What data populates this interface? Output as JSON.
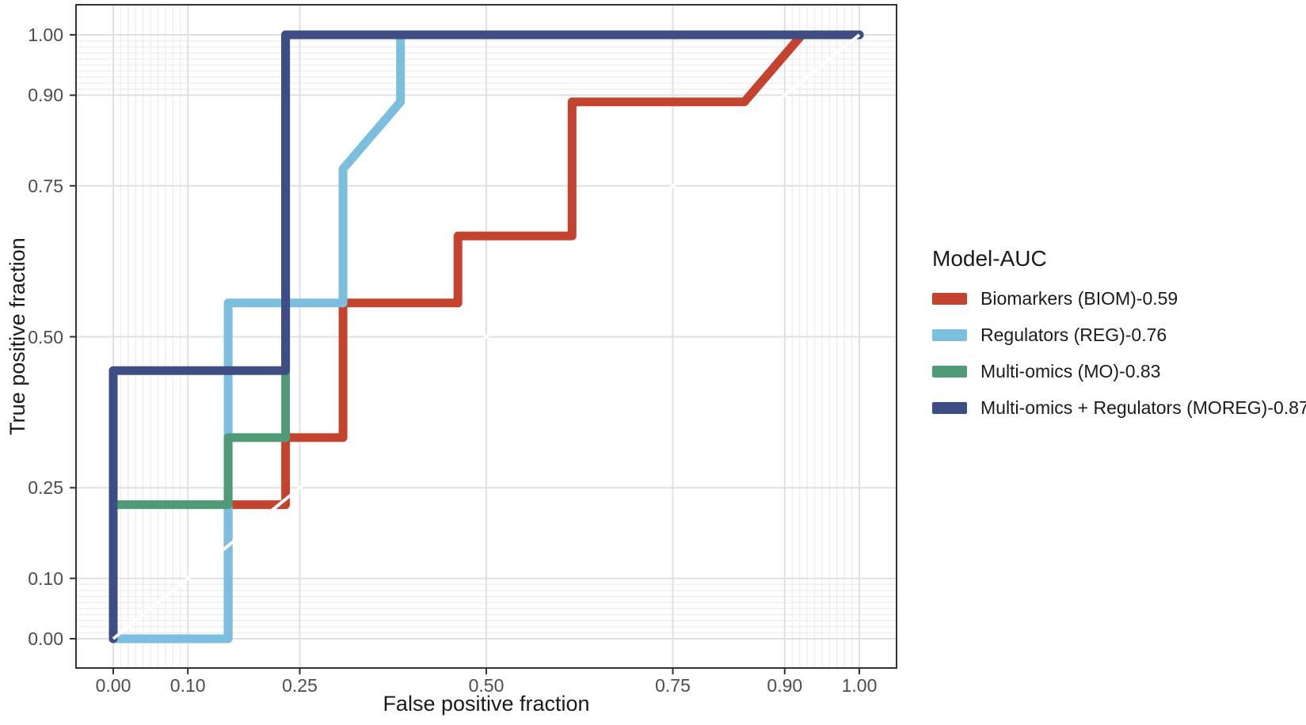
{
  "chart_data": {
    "type": "line",
    "subtype": "roc-step-curves",
    "title": "",
    "xlabel": "False positive fraction",
    "ylabel": "True positive fraction",
    "xlim": [
      0,
      1
    ],
    "ylim": [
      0,
      1
    ],
    "grid": "major on, minor bands near 0 and 1 on both axes",
    "x_ticks": [
      0,
      0.1,
      0.25,
      0.5,
      0.75,
      0.9,
      1.0
    ],
    "x_tick_labels": [
      "0.00",
      "0.10",
      "0.25",
      "0.50",
      "0.75",
      "0.90",
      "1.00"
    ],
    "y_ticks": [
      0,
      0.1,
      0.25,
      0.5,
      0.75,
      0.9,
      1.0
    ],
    "y_tick_labels": [
      "0.00",
      "0.10",
      "0.25",
      "0.50",
      "0.75",
      "0.90",
      "1.00"
    ],
    "minor_grid_values": [
      0.01,
      0.02,
      0.03,
      0.04,
      0.05,
      0.06,
      0.07,
      0.08,
      0.09,
      0.91,
      0.92,
      0.93,
      0.94,
      0.95,
      0.96,
      0.97,
      0.98,
      0.99
    ],
    "legend_title": "Model-AUC",
    "legend_position": "right",
    "reference_line": {
      "label": "chance line",
      "x": [
        0,
        1
      ],
      "y": [
        0,
        1
      ],
      "color": "#FFFFFF"
    },
    "series": [
      {
        "id": "biom",
        "name": "Biomarkers (BIOM)-0.59",
        "auc": 0.59,
        "color": "#C4432F",
        "points": [
          [
            0,
            0
          ],
          [
            0.154,
            0
          ],
          [
            0.154,
            0.222
          ],
          [
            0.231,
            0.222
          ],
          [
            0.231,
            0.333
          ],
          [
            0.308,
            0.333
          ],
          [
            0.308,
            0.556
          ],
          [
            0.462,
            0.556
          ],
          [
            0.462,
            0.667
          ],
          [
            0.615,
            0.667
          ],
          [
            0.615,
            0.889
          ],
          [
            0.846,
            0.889
          ],
          [
            0.923,
            1.0
          ],
          [
            1.0,
            1.0
          ]
        ]
      },
      {
        "id": "reg",
        "name": "Regulators (REG)-0.76",
        "auc": 0.76,
        "color": "#7BBEDD",
        "points": [
          [
            0,
            0
          ],
          [
            0.154,
            0
          ],
          [
            0.154,
            0.556
          ],
          [
            0.308,
            0.556
          ],
          [
            0.308,
            0.778
          ],
          [
            0.385,
            0.889
          ],
          [
            0.385,
            1.0
          ],
          [
            1.0,
            1.0
          ]
        ]
      },
      {
        "id": "mo",
        "name": "Multi-omics (MO)-0.83",
        "auc": 0.83,
        "color": "#4F9B78",
        "points": [
          [
            0,
            0
          ],
          [
            0,
            0.222
          ],
          [
            0.154,
            0.222
          ],
          [
            0.154,
            0.333
          ],
          [
            0.231,
            0.333
          ],
          [
            0.231,
            1.0
          ],
          [
            1.0,
            1.0
          ]
        ]
      },
      {
        "id": "moreg",
        "name": "Multi-omics + Regulators (MOREG)-0.87",
        "auc": 0.87,
        "color": "#3E4E84",
        "points": [
          [
            0,
            0
          ],
          [
            0,
            0.444
          ],
          [
            0.231,
            0.444
          ],
          [
            0.231,
            1.0
          ],
          [
            1.0,
            1.0
          ]
        ]
      }
    ],
    "style_colors": {
      "background": "#FFFFFF",
      "panel_background": "#FFFFFF",
      "grid_major": "#E0E0E0",
      "grid_minor": "#EDEDED",
      "panel_border": "#333333",
      "tick_mark": "#333333",
      "tick_label": "#4D4D4D",
      "axis_title": "#1A1A1A",
      "legend_text": "#1A1A1A",
      "reference_line": "#FFFFFF"
    }
  }
}
